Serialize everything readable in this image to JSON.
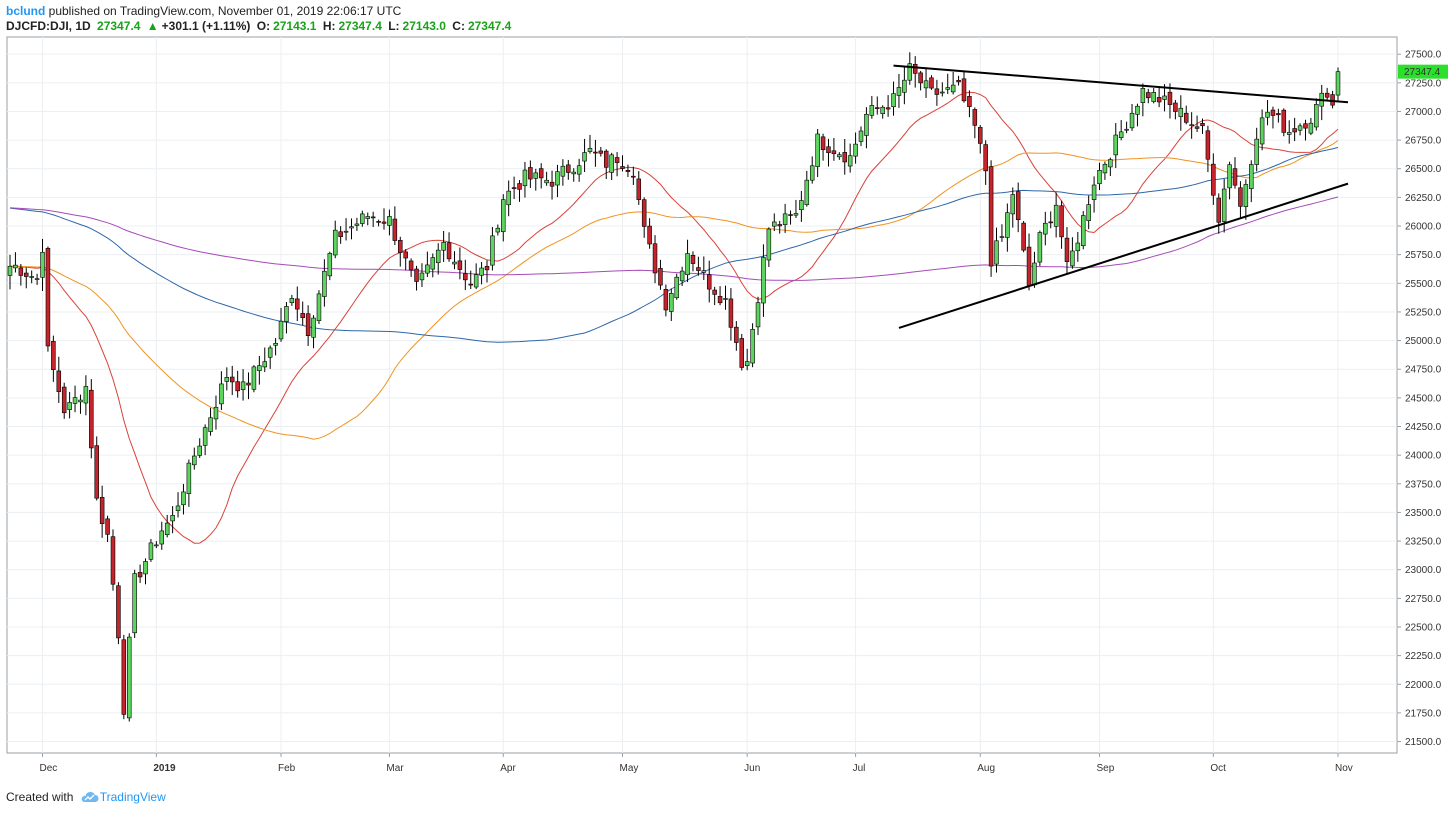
{
  "header": {
    "user": "bclund",
    "published_text": " published on TradingView.com, November 01, 2019 22:06:17 UTC",
    "symbol": "DJCFD:DJI, 1D",
    "price": "27347.4",
    "change_arrow": "▲",
    "change": "+301.1 (+1.11%)",
    "o_label": "O:",
    "o_value": "27143.1",
    "h_label": "H:",
    "h_value": "27347.4",
    "l_label": "L:",
    "l_value": "27143.0",
    "c_label": "C:",
    "c_value": "27347.4"
  },
  "footer": {
    "created_with": "Created with",
    "brand": "TradingView"
  },
  "colors": {
    "up": "#5fd35f",
    "down": "#c4242b",
    "ma20": "#d9423a",
    "ma50": "#f09322",
    "ma100": "#2f67a8",
    "ma200": "#a64bb8",
    "trendline": "#000000",
    "last_price_tag": "#2ae02a",
    "grid": "#eceff2"
  },
  "icons": {
    "logo": "tradingview-cloud-icon"
  },
  "chart_data": {
    "type": "candlestick",
    "title": "DJCFD:DJI, 1D",
    "ylim": [
      21400,
      27650
    ],
    "grid": true,
    "last_price_label": "27347.4",
    "yticks": [
      27500,
      27250,
      27000,
      26750,
      26500,
      26250,
      26000,
      25750,
      25500,
      25250,
      25000,
      24750,
      24500,
      24250,
      24000,
      23750,
      23500,
      23250,
      23000,
      22750,
      22500,
      22250,
      22000,
      21750,
      21500
    ],
    "ytick_labels": [
      "27500.0",
      "27250.0",
      "27000.0",
      "26750.0",
      "26500.0",
      "26250.0",
      "26000.0",
      "25750.0",
      "25500.0",
      "25250.0",
      "25000.0",
      "24750.0",
      "24500.0",
      "24250.0",
      "24000.0",
      "23750.0",
      "23500.0",
      "23250.0",
      "23000.0",
      "22750.0",
      "22500.0",
      "22250.0",
      "22000.0",
      "21750.0",
      "21500.0"
    ],
    "xticks": [
      "Dec",
      "2019",
      "Feb",
      "Mar",
      "Apr",
      "May",
      "Jun",
      "Jul",
      "Aug",
      "Sep",
      "Oct",
      "Nov"
    ],
    "xtick_bold": [
      false,
      true,
      false,
      false,
      false,
      false,
      false,
      false,
      false,
      false,
      false,
      false
    ],
    "key_points": [
      {
        "date": "Dec 03",
        "close": 25830
      },
      {
        "date": "Dec 24",
        "low": 21700
      },
      {
        "date": "Feb 25",
        "close": 26090
      },
      {
        "date": "Apr 23",
        "close": 26650
      },
      {
        "date": "Jun 03",
        "low": 24700
      },
      {
        "date": "Jul 15",
        "high": 27400
      },
      {
        "date": "Aug 15",
        "low": 25350
      },
      {
        "date": "Sep 12",
        "high": 27310
      },
      {
        "date": "Oct 02",
        "low": 25740
      },
      {
        "date": "Nov 01",
        "close": 27347.4
      }
    ],
    "moving_averages": [
      {
        "name": "MA20",
        "color": "#d9423a"
      },
      {
        "name": "MA50",
        "color": "#f09322"
      },
      {
        "name": "MA100",
        "color": "#2f67a8"
      },
      {
        "name": "MA200",
        "color": "#a64bb8"
      }
    ],
    "trendlines": [
      {
        "name": "resistance",
        "from": {
          "date": "Jul 10",
          "value": 27400
        },
        "to": {
          "date": "Nov 01",
          "value": 27080
        }
      },
      {
        "name": "support",
        "from": {
          "date": "Jul 11",
          "value": 25110
        },
        "to": {
          "date": "Nov 01",
          "value": 26370
        }
      }
    ]
  }
}
